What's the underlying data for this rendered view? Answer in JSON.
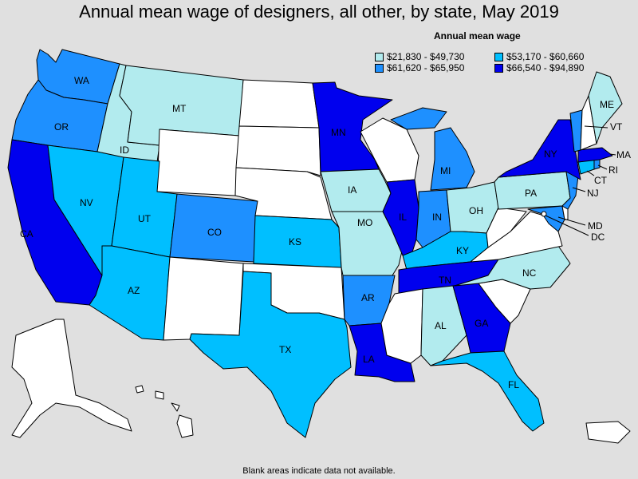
{
  "title": "Annual mean wage of designers, all other, by state, May 2019",
  "legend": {
    "title": "Annual mean wage",
    "items": [
      {
        "label": "$21,830 - $49,730",
        "color": "#b2ebee"
      },
      {
        "label": "$53,170 - $60,660",
        "color": "#00bfff"
      },
      {
        "label": "$61,620 - $65,950",
        "color": "#1e90ff"
      },
      {
        "label": "$66,540 - $94,890",
        "color": "#0000ee"
      }
    ]
  },
  "footnote": "Blank areas indicate data not available.",
  "colors": {
    "nodata": "#ffffff",
    "c1": "#b2ebee",
    "c2": "#00bfff",
    "c3": "#1e90ff",
    "c4": "#0000ee"
  },
  "states": {
    "WA": {
      "label": "WA",
      "bin": 3
    },
    "OR": {
      "label": "OR",
      "bin": 3
    },
    "CA": {
      "label": "CA",
      "bin": 4
    },
    "ID": {
      "label": "ID",
      "bin": 1
    },
    "NV": {
      "label": "NV",
      "bin": 2
    },
    "MT": {
      "label": "MT",
      "bin": 1
    },
    "UT": {
      "label": "UT",
      "bin": 2
    },
    "AZ": {
      "label": "AZ",
      "bin": 2
    },
    "CO": {
      "label": "CO",
      "bin": 3
    },
    "KS": {
      "label": "KS",
      "bin": 2
    },
    "TX": {
      "label": "TX",
      "bin": 2
    },
    "MN": {
      "label": "MN",
      "bin": 4
    },
    "IA": {
      "label": "IA",
      "bin": 1
    },
    "MO": {
      "label": "MO",
      "bin": 1
    },
    "AR": {
      "label": "AR",
      "bin": 3
    },
    "LA": {
      "label": "LA",
      "bin": 4
    },
    "IL": {
      "label": "IL",
      "bin": 4
    },
    "MI": {
      "label": "MI",
      "bin": 3
    },
    "IN": {
      "label": "IN",
      "bin": 3
    },
    "OH": {
      "label": "OH",
      "bin": 1
    },
    "KY": {
      "label": "KY",
      "bin": 2
    },
    "TN": {
      "label": "TN",
      "bin": 4
    },
    "AL": {
      "label": "AL",
      "bin": 1
    },
    "GA": {
      "label": "GA",
      "bin": 4
    },
    "FL": {
      "label": "FL",
      "bin": 2
    },
    "NC": {
      "label": "NC",
      "bin": 1
    },
    "PA": {
      "label": "PA",
      "bin": 1
    },
    "NY": {
      "label": "NY",
      "bin": 4
    },
    "ME": {
      "label": "ME",
      "bin": 1
    },
    "VT": {
      "label": "VT",
      "bin": 3
    },
    "NH": {
      "label": "",
      "bin": 0
    },
    "MA": {
      "label": "MA",
      "bin": 4
    },
    "RI": {
      "label": "RI",
      "bin": 3
    },
    "CT": {
      "label": "CT",
      "bin": 2
    },
    "NJ": {
      "label": "NJ",
      "bin": 3
    },
    "MD": {
      "label": "MD",
      "bin": 3
    },
    "DC": {
      "label": "DC",
      "bin": 0
    },
    "DE": {
      "label": "",
      "bin": 0
    },
    "ND": {
      "label": "",
      "bin": 0
    },
    "SD": {
      "label": "",
      "bin": 0
    },
    "NE": {
      "label": "",
      "bin": 0
    },
    "WY": {
      "label": "",
      "bin": 0
    },
    "NM": {
      "label": "",
      "bin": 0
    },
    "OK": {
      "label": "",
      "bin": 0
    },
    "WI": {
      "label": "",
      "bin": 0
    },
    "MS": {
      "label": "",
      "bin": 0
    },
    "SC": {
      "label": "",
      "bin": 0
    },
    "VA": {
      "label": "",
      "bin": 0
    },
    "WV": {
      "label": "",
      "bin": 0
    },
    "AK": {
      "label": "",
      "bin": 0
    },
    "HI": {
      "label": "",
      "bin": 0
    },
    "PR": {
      "label": "",
      "bin": 0
    }
  }
}
